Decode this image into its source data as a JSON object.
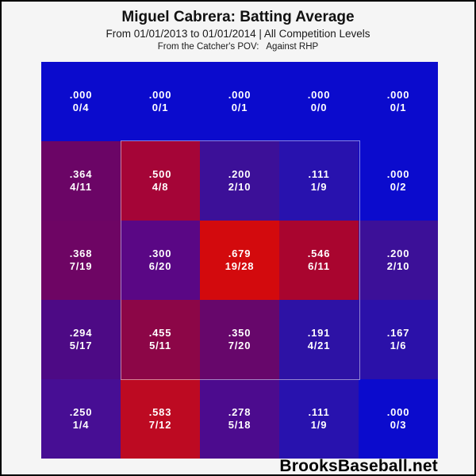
{
  "header": {
    "title": "Miguel Cabrera: Batting Average",
    "subtitle": "From 01/01/2013 to 01/01/2014 | All Competition Levels",
    "pov_line": "From the Catcher's POV:   Against RHP"
  },
  "footer": {
    "brand": "BrooksBaseball.net"
  },
  "chart_data": {
    "type": "heatmap",
    "title": "Miguel Cabrera: Batting Average",
    "subtitle": "From 01/01/2013 to 01/01/2014 | All Competition Levels",
    "annotation": "From the Catcher's POV: Against RHP",
    "rows": 5,
    "cols": 5,
    "legend": "cells show batting average and hits/at-bats",
    "strike_zone": {
      "row_start": 2,
      "col_start": 2,
      "row_end": 4,
      "col_end": 4
    },
    "colorscale": {
      "low_color": "#0b0bcd",
      "mid_color": "#6b0566",
      "high_color": "#d30a0d",
      "low_value": 0.0,
      "high_value": 0.679
    },
    "grid": [
      [
        {
          "avg": ".000",
          "count": "0/4",
          "value": 0.0,
          "color": "#0b0bcd"
        },
        {
          "avg": ".000",
          "count": "0/1",
          "value": 0.0,
          "color": "#0b0bcd"
        },
        {
          "avg": ".000",
          "count": "0/1",
          "value": 0.0,
          "color": "#0b0bcd"
        },
        {
          "avg": ".000",
          "count": "0/0",
          "value": 0.0,
          "color": "#0b0bcd"
        },
        {
          "avg": ".000",
          "count": "0/1",
          "value": 0.0,
          "color": "#0b0bcd"
        }
      ],
      [
        {
          "avg": ".364",
          "count": "4/11",
          "value": 0.364,
          "color": "#6b0566"
        },
        {
          "avg": ".500",
          "count": "4/8",
          "value": 0.5,
          "color": "#a50537"
        },
        {
          "avg": ".200",
          "count": "2/10",
          "value": 0.2,
          "color": "#3c1098"
        },
        {
          "avg": ".111",
          "count": "1/9",
          "value": 0.111,
          "color": "#2812ae"
        },
        {
          "avg": ".000",
          "count": "0/2",
          "value": 0.0,
          "color": "#0b0bcd"
        }
      ],
      [
        {
          "avg": ".368",
          "count": "7/19",
          "value": 0.368,
          "color": "#6e0564"
        },
        {
          "avg": ".300",
          "count": "6/20",
          "value": 0.3,
          "color": "#5a0785"
        },
        {
          "avg": ".679",
          "count": "19/28",
          "value": 0.679,
          "color": "#d30a0d"
        },
        {
          "avg": ".546",
          "count": "6/11",
          "value": 0.546,
          "color": "#a9052f"
        },
        {
          "avg": ".200",
          "count": "2/10",
          "value": 0.2,
          "color": "#3c1098"
        }
      ],
      [
        {
          "avg": ".294",
          "count": "5/17",
          "value": 0.294,
          "color": "#4d0a85"
        },
        {
          "avg": ".455",
          "count": "5/11",
          "value": 0.455,
          "color": "#8c0647"
        },
        {
          "avg": ".350",
          "count": "7/20",
          "value": 0.35,
          "color": "#67076b"
        },
        {
          "avg": ".191",
          "count": "4/21",
          "value": 0.191,
          "color": "#2d12a5"
        },
        {
          "avg": ".167",
          "count": "1/6",
          "value": 0.167,
          "color": "#2b11a9"
        }
      ],
      [
        {
          "avg": ".250",
          "count": "1/4",
          "value": 0.25,
          "color": "#470e94"
        },
        {
          "avg": ".583",
          "count": "7/12",
          "value": 0.583,
          "color": "#bd0a22"
        },
        {
          "avg": ".278",
          "count": "5/18",
          "value": 0.278,
          "color": "#4c0b8e"
        },
        {
          "avg": ".111",
          "count": "1/9",
          "value": 0.111,
          "color": "#2812ae"
        },
        {
          "avg": ".000",
          "count": "0/3",
          "value": 0.0,
          "color": "#0b0bcd"
        }
      ]
    ]
  }
}
